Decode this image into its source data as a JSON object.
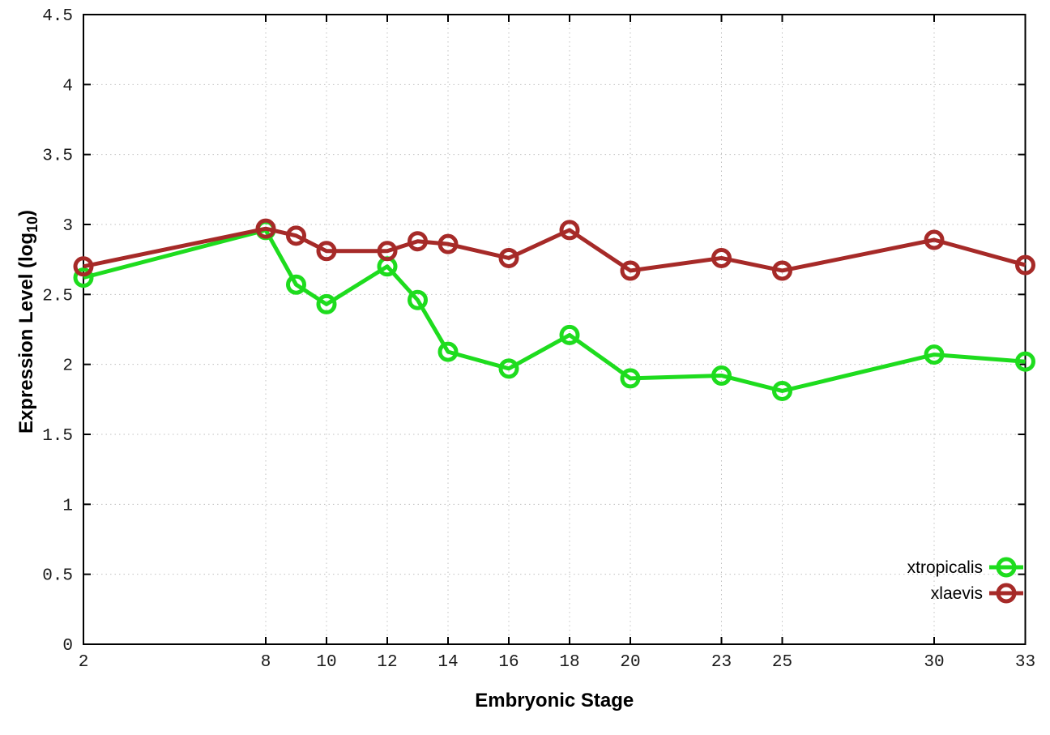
{
  "figure": {
    "background": "#ffffff",
    "axis_color": "#000000",
    "grid_color": "#c0c0c0",
    "tick_label_color": "#1a1a1a"
  },
  "chart_data": {
    "type": "line",
    "title": "",
    "xlabel": "Embryonic Stage",
    "ylabel": "Expression Level (log10)",
    "ylabel_parts": {
      "prefix": "Expression Level (log",
      "sub": "10",
      "suffix": ")"
    },
    "xlim": [
      2,
      33
    ],
    "ylim": [
      0,
      4.5
    ],
    "grid": true,
    "legend_position": "bottom-right-inside",
    "xticks": [
      2,
      8,
      10,
      12,
      14,
      16,
      18,
      20,
      23,
      25,
      30,
      33
    ],
    "yticks": [
      0,
      0.5,
      1,
      1.5,
      2,
      2.5,
      3,
      3.5,
      4,
      4.5
    ],
    "ytick_labels": [
      "0",
      "0.5",
      "1",
      "1.5",
      "2",
      "2.5",
      "3",
      "3.5",
      "4",
      "4.5"
    ],
    "x": [
      2,
      8,
      9,
      10,
      12,
      13,
      14,
      16,
      18,
      20,
      23,
      25,
      30,
      33
    ],
    "series": [
      {
        "name": "xtropicalis",
        "color": "#1edc1e",
        "values": [
          2.62,
          2.96,
          2.57,
          2.43,
          2.7,
          2.46,
          2.09,
          1.97,
          2.21,
          1.9,
          1.92,
          1.81,
          2.07,
          2.02
        ]
      },
      {
        "name": "xlaevis",
        "color": "#a62a28",
        "values": [
          2.7,
          2.97,
          2.92,
          2.81,
          2.81,
          2.88,
          2.86,
          2.76,
          2.96,
          2.67,
          2.76,
          2.67,
          2.89,
          2.71
        ]
      }
    ]
  }
}
